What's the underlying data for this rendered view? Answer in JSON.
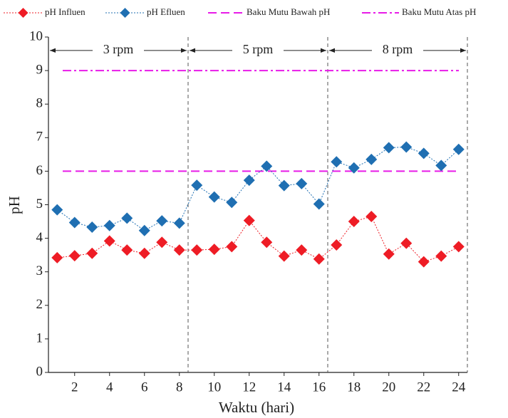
{
  "chart_data": {
    "type": "line",
    "x": [
      1,
      2,
      3,
      4,
      5,
      6,
      7,
      8,
      9,
      10,
      11,
      12,
      13,
      14,
      15,
      16,
      17,
      18,
      19,
      20,
      21,
      22,
      23,
      24
    ],
    "series": [
      {
        "name": "pH Influen",
        "color": "#ee1c25",
        "values": [
          3.42,
          3.48,
          3.55,
          3.92,
          3.65,
          3.55,
          3.88,
          3.65,
          3.65,
          3.67,
          3.75,
          4.53,
          3.88,
          3.47,
          3.65,
          3.38,
          3.8,
          4.5,
          4.65,
          3.53,
          3.85,
          3.3,
          3.47,
          3.75
        ]
      },
      {
        "name": "pH Efluen",
        "color": "#1f6fb2",
        "values": [
          4.85,
          4.47,
          4.33,
          4.38,
          4.6,
          4.23,
          4.52,
          4.45,
          5.58,
          5.23,
          5.07,
          5.73,
          6.15,
          5.57,
          5.63,
          5.02,
          6.28,
          6.1,
          6.35,
          6.7,
          6.72,
          6.53,
          6.17,
          6.65
        ]
      }
    ],
    "reference_lines": [
      {
        "name": "Baku Mutu Bawah pH",
        "value": 6,
        "color": "#e81be8",
        "dash": "dashed"
      },
      {
        "name": "Baku Mutu Atas pH",
        "value": 9,
        "color": "#e81be8",
        "dash": "dashdot"
      }
    ],
    "phases": [
      {
        "label": "3 rpm",
        "from": 0.5,
        "to": 8.5
      },
      {
        "label": "5 rpm",
        "from": 8.5,
        "to": 16.5
      },
      {
        "label": "8 rpm",
        "from": 16.5,
        "to": 24.5
      }
    ],
    "phase_label_y": 9.6,
    "x_label": "Waktu (hari)",
    "y_label": "pH",
    "xlim": [
      0.5,
      24.5
    ],
    "ylim": [
      0,
      10
    ],
    "xticks": [
      2,
      4,
      6,
      8,
      10,
      12,
      14,
      16,
      18,
      20,
      22,
      24
    ],
    "yticks": [
      0,
      1,
      2,
      3,
      4,
      5,
      6,
      7,
      8,
      9,
      10
    ]
  }
}
